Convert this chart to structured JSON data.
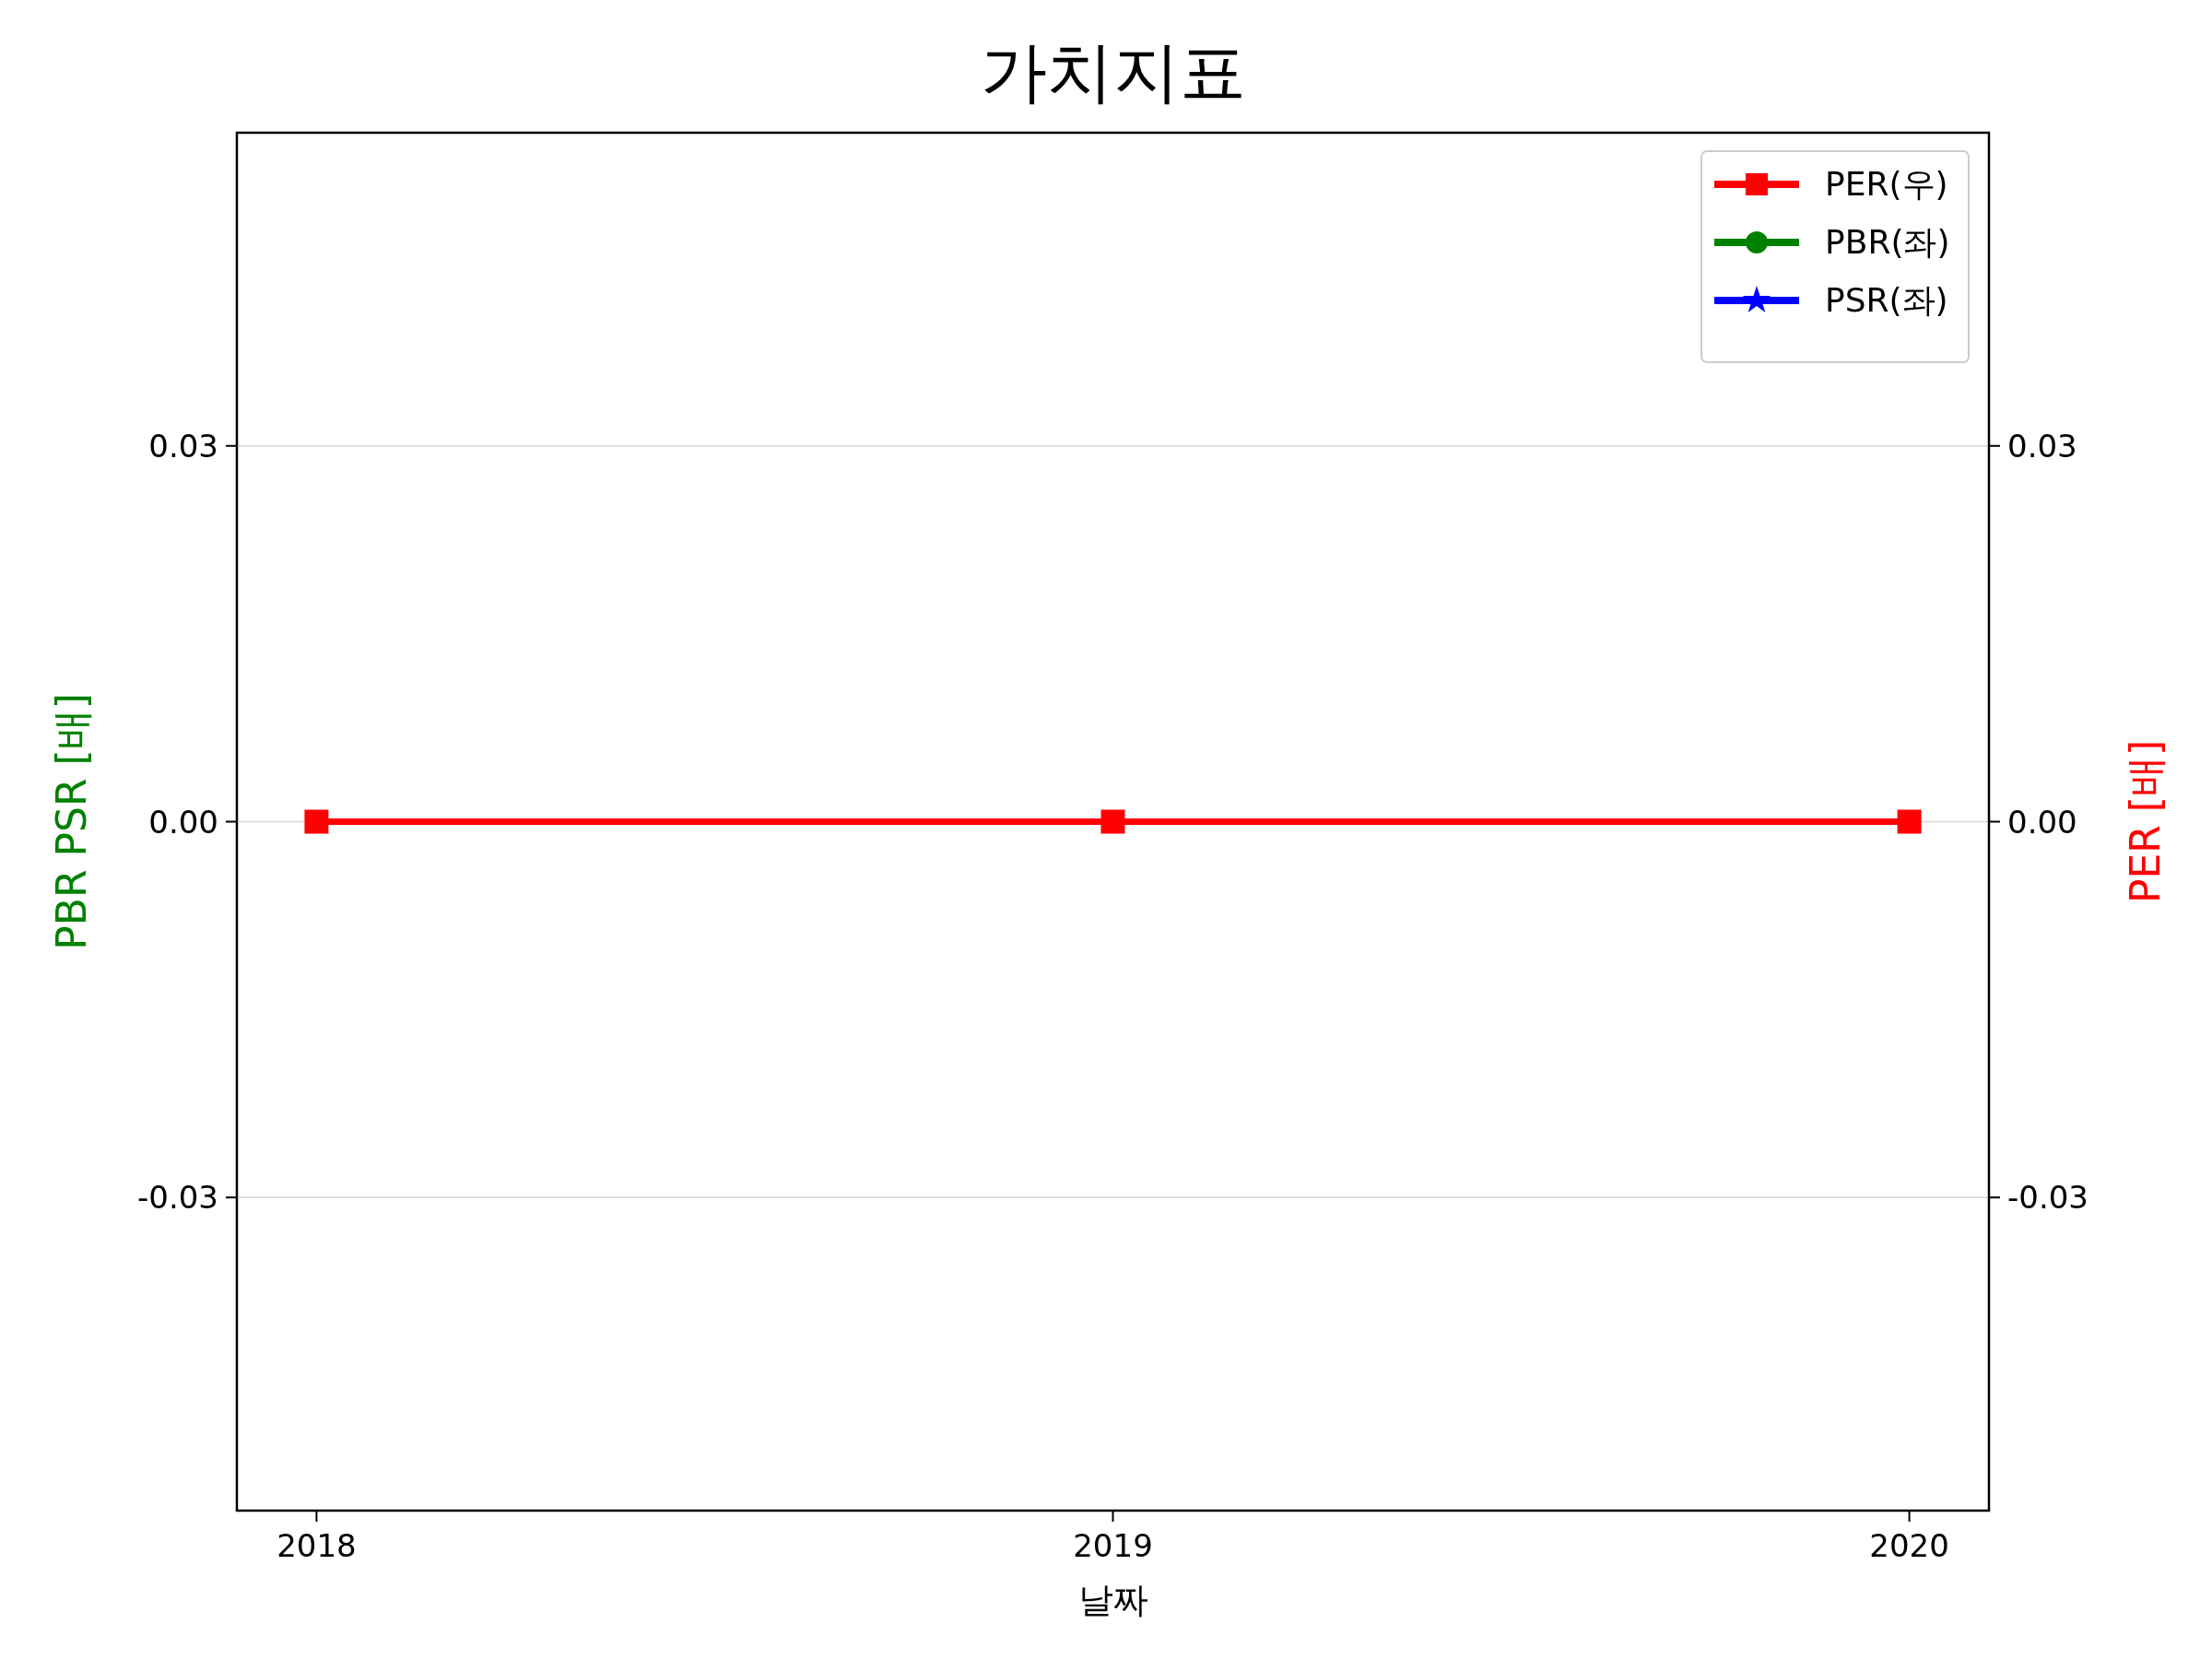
{
  "chart_data": {
    "type": "line",
    "title": "가치지표",
    "xlabel": "날짜",
    "ylabel": "PBR PSR [배]",
    "y2label": "PER [배]",
    "x": [
      2018,
      2019,
      2020
    ],
    "xlim": [
      2017.9,
      2020.1
    ],
    "xticks": [
      2018,
      2019,
      2020
    ],
    "ylim": [
      -0.055,
      0.055
    ],
    "yticks": [
      {
        "value": -0.03,
        "label": "-0.03"
      },
      {
        "value": 0,
        "label": "0.00"
      },
      {
        "value": 0.03,
        "label": "0.03"
      }
    ],
    "y2lim": [
      -0.055,
      0.055
    ],
    "y2ticks": [
      {
        "value": -0.03,
        "label": "-0.03"
      },
      {
        "value": 0,
        "label": "0.00"
      },
      {
        "value": 0.03,
        "label": "0.03"
      }
    ],
    "grid": "y",
    "legend": "top right",
    "line_style": "solid",
    "series": [
      {
        "name": "PER(우)",
        "color": "#ff0000",
        "values": [
          0,
          0,
          0
        ],
        "axis": "y2",
        "marker": "square"
      },
      {
        "name": "PBR(좌)",
        "color": "#008000",
        "values": [
          null,
          null,
          null
        ],
        "marker": "circle"
      },
      {
        "name": "PSR(좌)",
        "color": "#0000ff",
        "values": [
          null,
          null,
          null
        ],
        "marker": "star"
      }
    ]
  }
}
